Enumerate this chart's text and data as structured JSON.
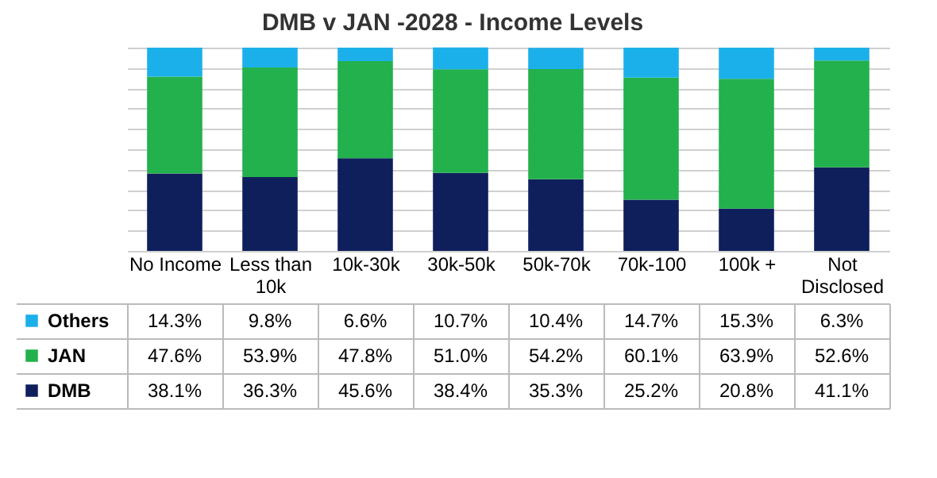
{
  "chart_data": {
    "type": "bar",
    "title": "DMB v JAN -2028 - Income Levels",
    "stacked": true,
    "grid": "y",
    "tick_labels": "x",
    "legend": "bottom left",
    "ylim": [
      0,
      100
    ],
    "yticks": [
      {
        "value": 0,
        "label": null
      },
      {
        "value": 10,
        "label": null
      },
      {
        "value": 20,
        "label": null
      },
      {
        "value": 30,
        "label": null
      },
      {
        "value": 40,
        "label": null
      },
      {
        "value": 50,
        "label": null
      },
      {
        "value": 60,
        "label": null
      },
      {
        "value": 70,
        "label": null
      },
      {
        "value": 80,
        "label": null
      },
      {
        "value": 90,
        "label": null
      },
      {
        "value": 100,
        "label": null
      }
    ],
    "categories": [
      "No Income",
      "Less than 10k",
      "10k-30k",
      "30k-50k",
      "50k-70k",
      "70k-100",
      "100k +",
      "Not Disclosed"
    ],
    "series": [
      {
        "name": "DMB",
        "color": "#0f1f5c",
        "values": [
          38.1,
          36.3,
          45.6,
          38.4,
          35.3,
          25.2,
          20.8,
          41.1
        ],
        "value_labels": [
          "38.1%",
          "36.3%",
          "45.6%",
          "38.4%",
          "35.3%",
          "25.2%",
          "20.8%",
          "41.1%"
        ]
      },
      {
        "name": "JAN",
        "color": "#22b14c",
        "values": [
          47.6,
          53.9,
          47.8,
          51.0,
          54.2,
          60.1,
          63.9,
          52.6
        ],
        "value_labels": [
          "47.6%",
          "53.9%",
          "47.8%",
          "51.0%",
          "54.2%",
          "60.1%",
          "63.9%",
          "52.6%"
        ]
      },
      {
        "name": "Others",
        "color": "#1cb0ea",
        "values": [
          14.3,
          9.8,
          6.6,
          10.7,
          10.4,
          14.7,
          15.3,
          6.3
        ],
        "value_labels": [
          "14.3%",
          "9.8%",
          "6.6%",
          "10.7%",
          "10.4%",
          "14.7%",
          "15.3%",
          "6.3%"
        ]
      }
    ]
  }
}
